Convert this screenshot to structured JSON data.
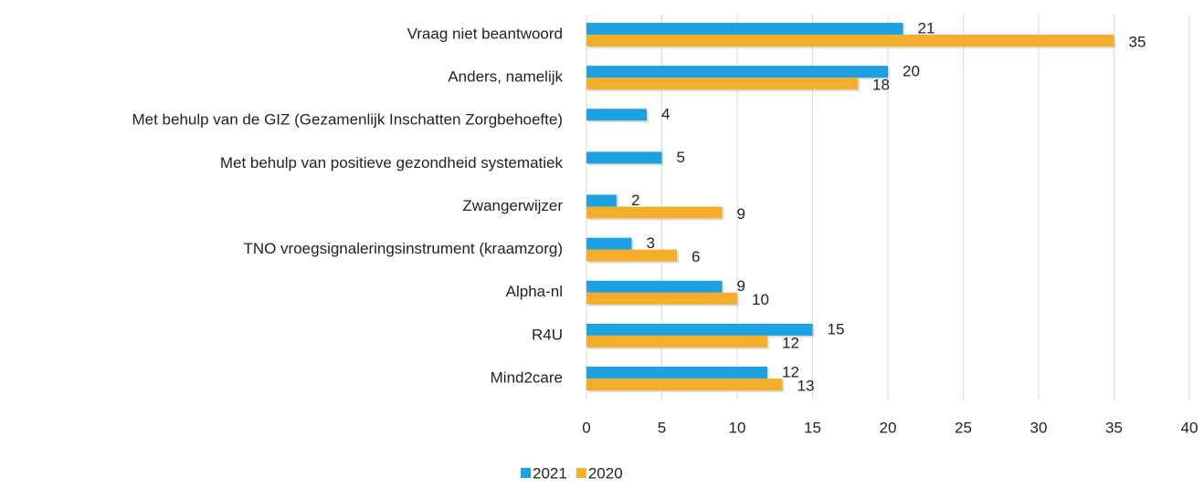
{
  "chart_data": {
    "type": "bar",
    "orientation": "horizontal",
    "categories": [
      "Vraag niet beantwoord",
      "Anders, namelijk",
      "Met behulp van de GIZ (Gezamenlijk Inschatten Zorgbehoefte)",
      "Met behulp van positieve gezondheid systematiek",
      "Zwangerwijzer",
      "TNO vroegsignaleringsinstrument (kraamzorg)",
      "Alpha-nl",
      "R4U",
      "Mind2care"
    ],
    "series": [
      {
        "name": "2021",
        "color": "#1ea1e0",
        "values": [
          21,
          20,
          4,
          5,
          2,
          3,
          9,
          15,
          12
        ]
      },
      {
        "name": "2020",
        "color": "#f4ae2c",
        "values": [
          35,
          18,
          null,
          null,
          9,
          6,
          10,
          12,
          13
        ]
      }
    ],
    "xlim": [
      0,
      40
    ],
    "xticks": [
      0,
      5,
      10,
      15,
      20,
      25,
      30,
      35,
      40
    ],
    "grid": true,
    "legend": "bottom"
  }
}
